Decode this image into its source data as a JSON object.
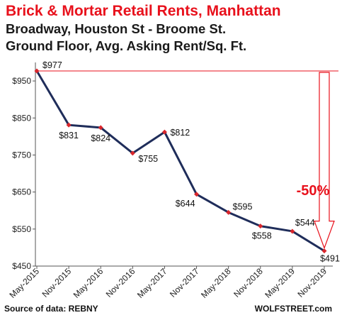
{
  "chart_data": {
    "type": "line",
    "title": "Brick & Mortar Retail Rents, Manhattan",
    "subtitle": [
      "Broadway, Houston St - Broome St.",
      "Ground Floor, Avg. Asking Rent/Sq. Ft."
    ],
    "categories": [
      "May-2015",
      "Nov-2015",
      "May-2016",
      "Nov-2016",
      "May-2017",
      "Nov-2017",
      "May-2018",
      "Nov-2018",
      "May-2019",
      "Nov-2019"
    ],
    "series": [
      {
        "values": [
          977,
          831,
          824,
          755,
          812,
          644,
          595,
          558,
          544,
          491
        ]
      }
    ],
    "data_labels": [
      "$977",
      "$831",
      "$824",
      "$755",
      "$812",
      "$644",
      "$595",
      "$558",
      "$544",
      "$491"
    ],
    "y_ticks": [
      450,
      550,
      650,
      750,
      850,
      950
    ],
    "y_tick_labels": [
      "$450",
      "$550",
      "$650",
      "$750",
      "$850",
      "$950"
    ],
    "ylim": [
      450,
      1000
    ],
    "annotation": "-50%",
    "grid": false,
    "colors": {
      "line": "#1f2d5a",
      "marker": "#d9262c",
      "title": "#e8111c",
      "annotation": "#e8111c",
      "reference_line": "#e8111c"
    }
  },
  "source": "Source of data: REBNY",
  "credit": "WOLFSTREET.com"
}
